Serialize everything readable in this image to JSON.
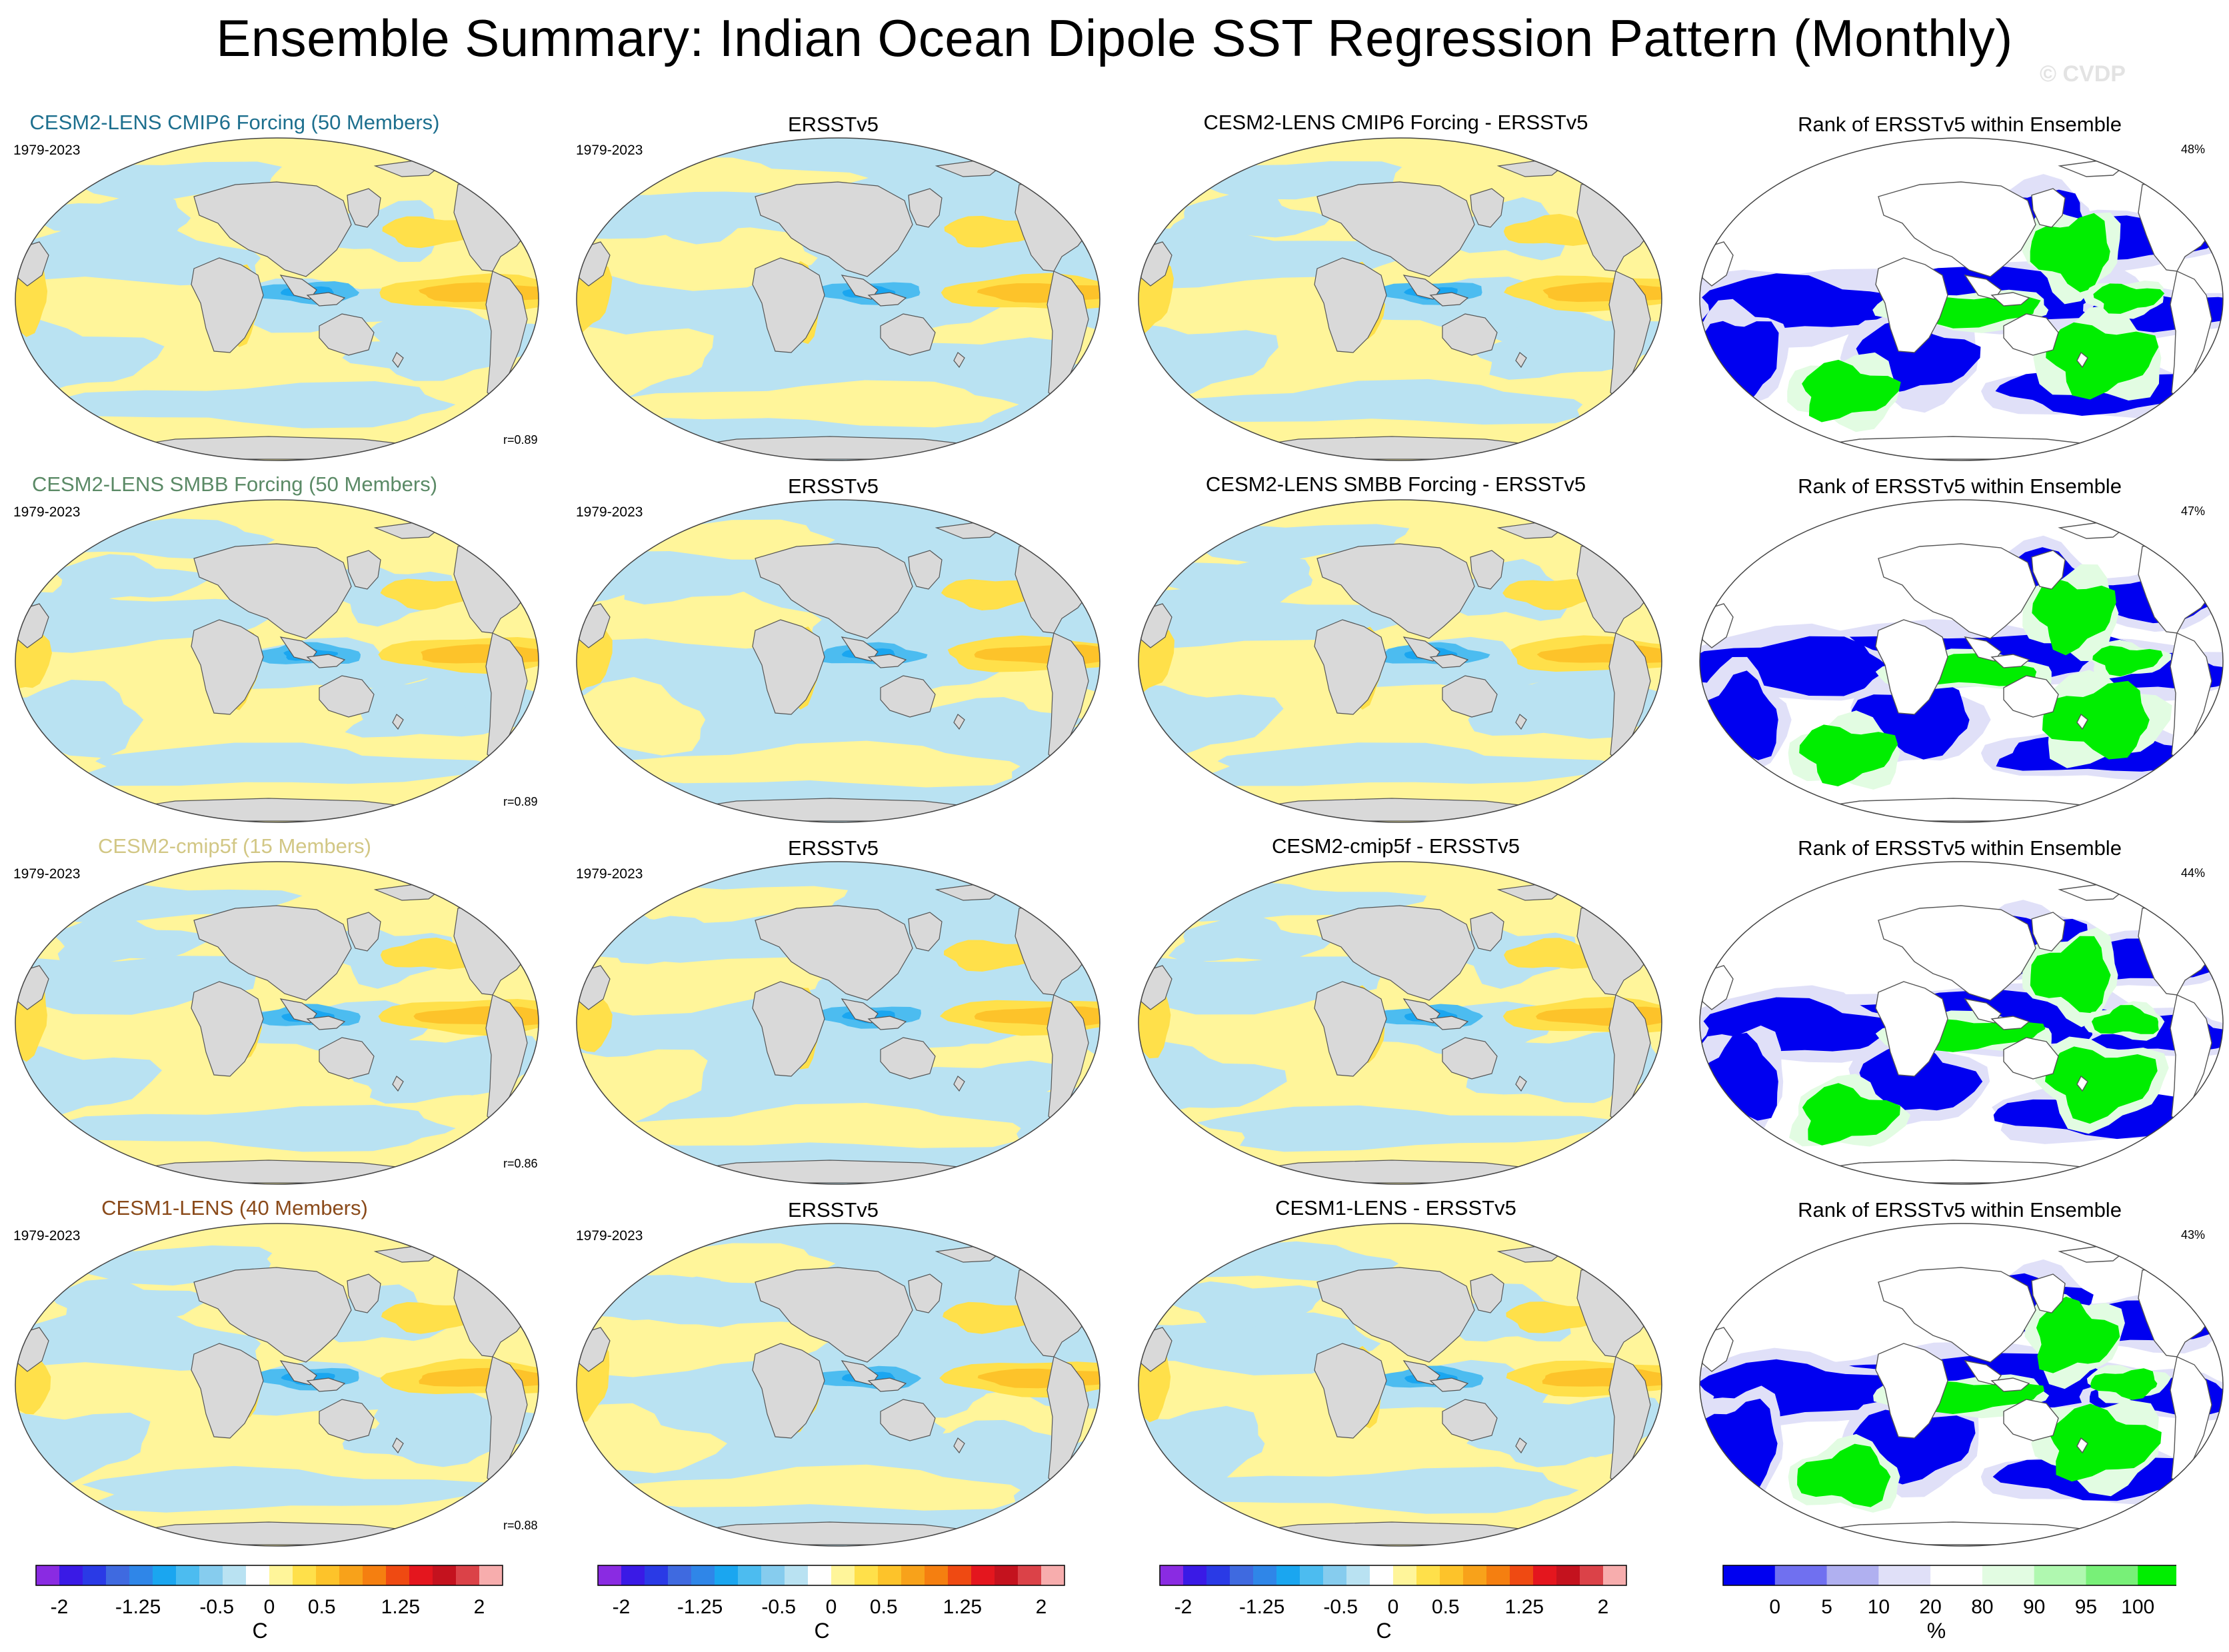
{
  "title": "Ensemble Summary: Indian Ocean Dipole SST Regression Pattern (Monthly)",
  "watermark": "© CVDP",
  "colors": {
    "land": "#d9d9d9",
    "row1_title": "#1d6f8e",
    "row2_title": "#5b8a66",
    "row3_title": "#d2c785",
    "row4_title": "#8a4a1a"
  },
  "chart_data": {
    "type": "heatmap",
    "projection": "robinson",
    "rows": [
      {
        "ensemble_title": "CESM2-LENS CMIP6 Forcing (50 Members)",
        "title_color": "#1d6f8e",
        "period": "1979-2023",
        "pattern_correlation": "r=0.89",
        "obs_title": "ERSSTv5",
        "obs_period": "1979-2023",
        "diff_title": "CESM2-LENS CMIP6 Forcing - ERSSTv5",
        "rank_title": "Rank of ERSSTv5 within Ensemble",
        "rank_percent": "48%"
      },
      {
        "ensemble_title": "CESM2-LENS SMBB Forcing (50 Members)",
        "title_color": "#5b8a66",
        "period": "1979-2023",
        "pattern_correlation": "r=0.89",
        "obs_title": "ERSSTv5",
        "obs_period": "1979-2023",
        "diff_title": "CESM2-LENS SMBB Forcing - ERSSTv5",
        "rank_title": "Rank of ERSSTv5 within Ensemble",
        "rank_percent": "47%"
      },
      {
        "ensemble_title": "CESM2-cmip5f (15 Members)",
        "title_color": "#d2c785",
        "period": "1979-2023",
        "pattern_correlation": "r=0.86",
        "obs_title": "ERSSTv5",
        "obs_period": "1979-2023",
        "diff_title": "CESM2-cmip5f - ERSSTv5",
        "rank_title": "Rank of ERSSTv5 within Ensemble",
        "rank_percent": "44%"
      },
      {
        "ensemble_title": "CESM1-LENS (40 Members)",
        "title_color": "#8a4a1a",
        "period": "1979-2023",
        "pattern_correlation": "r=0.88",
        "obs_title": "ERSSTv5",
        "obs_period": "1979-2023",
        "diff_title": "CESM1-LENS - ERSSTv5",
        "rank_title": "Rank of ERSSTv5 within Ensemble",
        "rank_percent": "43%"
      }
    ],
    "sst_colorbar": {
      "unit": "C",
      "levels": [
        -2,
        -1.75,
        -1.5,
        -1.25,
        -1,
        -0.75,
        -0.5,
        -0.25,
        0,
        0.25,
        0.5,
        0.75,
        1,
        1.25,
        1.5,
        1.75,
        2
      ],
      "tick_labels": [
        "-2",
        "-1.25",
        "-0.5",
        "0",
        "0.5",
        "1.25",
        "2"
      ],
      "tick_values": [
        -2,
        -1.25,
        -0.5,
        0,
        0.5,
        1.25,
        2
      ],
      "colors": [
        "#8a2be2",
        "#3a1ae6",
        "#2a3ae6",
        "#3f6ae0",
        "#2f86e8",
        "#1aa6f0",
        "#4cbcf0",
        "#86ccee",
        "#b9e2f2",
        "#ffffff",
        "#fff59a",
        "#ffe04a",
        "#fdc32a",
        "#f8a21a",
        "#f57f10",
        "#ef4a12",
        "#e4161e",
        "#c4121e",
        "#db4248",
        "#f7adad"
      ]
    },
    "rank_colorbar": {
      "unit": "%",
      "levels": [
        0,
        5,
        10,
        20,
        80,
        90,
        95,
        100
      ],
      "tick_labels": [
        "0",
        "5",
        "10",
        "20",
        "80",
        "90",
        "95",
        "100"
      ],
      "colors": [
        "#0000f0",
        "#7070f0",
        "#b0b0f0",
        "#e0e0f8",
        "#ffffff",
        "#e2fce2",
        "#b0f8b0",
        "#78f078",
        "#00ee00"
      ]
    }
  }
}
